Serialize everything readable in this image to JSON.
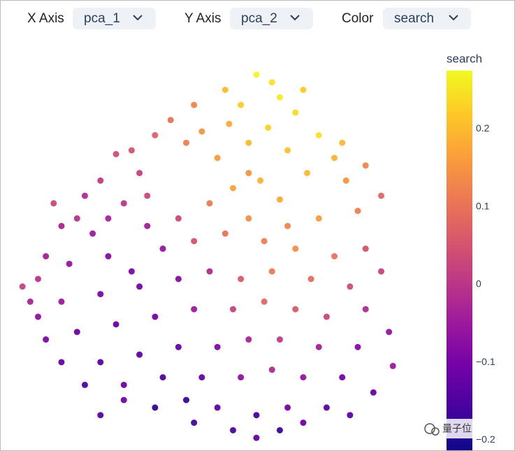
{
  "controls": [
    {
      "label": "X Axis",
      "value": "pca_1"
    },
    {
      "label": "Y Axis",
      "value": "pca_2"
    },
    {
      "label": "Color",
      "value": "search"
    }
  ],
  "watermark": "量子位",
  "chart_data": {
    "type": "scatter",
    "xlim": [
      0,
      100
    ],
    "ylim": [
      0,
      100
    ],
    "x": [
      62,
      68,
      58,
      72,
      55,
      65,
      78,
      48,
      60,
      70,
      82,
      52,
      44,
      75,
      63,
      85,
      56,
      68,
      88,
      78,
      60,
      50,
      40,
      36,
      30,
      26,
      32,
      22,
      18,
      28,
      12,
      20,
      8,
      2,
      6,
      14,
      24,
      34,
      42,
      38,
      46,
      54,
      64,
      72,
      82,
      90,
      94,
      86,
      76,
      66,
      58,
      50,
      42,
      32,
      22,
      12,
      6,
      16,
      26,
      36,
      46,
      56,
      64,
      72,
      80,
      90,
      96,
      97,
      88,
      78,
      68,
      60,
      52,
      42,
      32,
      22,
      12,
      18,
      28,
      38,
      48,
      58,
      66,
      74,
      84,
      92,
      80,
      70,
      62,
      52,
      44,
      36,
      22,
      56,
      62,
      68,
      74,
      46,
      86,
      28,
      8,
      4,
      54,
      74,
      66,
      46,
      84,
      90,
      94,
      34,
      16,
      10,
      24,
      30,
      60,
      70
    ],
    "y": [
      98,
      92,
      90,
      88,
      85,
      84,
      82,
      83,
      80,
      78,
      76,
      76,
      80,
      72,
      70,
      70,
      68,
      65,
      62,
      60,
      60,
      64,
      86,
      82,
      78,
      77,
      72,
      70,
      66,
      64,
      58,
      56,
      50,
      42,
      44,
      48,
      50,
      58,
      60,
      52,
      54,
      56,
      54,
      52,
      50,
      52,
      46,
      42,
      44,
      46,
      44,
      46,
      44,
      42,
      40,
      38,
      34,
      30,
      32,
      34,
      36,
      36,
      38,
      36,
      34,
      36,
      30,
      21,
      26,
      26,
      28,
      28,
      26,
      26,
      24,
      22,
      22,
      16,
      16,
      18,
      18,
      18,
      20,
      18,
      18,
      14,
      10,
      10,
      8,
      10,
      12,
      10,
      8,
      4,
      2,
      4,
      6,
      6,
      8,
      12,
      28,
      38,
      94,
      94,
      96,
      90,
      80,
      74,
      66,
      66,
      60,
      64,
      60,
      46,
      72,
      58
    ],
    "color_values": [
      0.27,
      0.26,
      0.22,
      0.24,
      0.18,
      0.23,
      0.25,
      0.15,
      0.2,
      0.21,
      0.19,
      0.16,
      0.12,
      0.2,
      0.19,
      0.15,
      0.17,
      0.18,
      0.12,
      0.16,
      0.14,
      0.11,
      0.1,
      0.07,
      0.05,
      0.04,
      0.02,
      0.01,
      -0.02,
      0.0,
      -0.03,
      -0.05,
      -0.04,
      0.02,
      0.0,
      -0.06,
      -0.08,
      -0.04,
      0.03,
      -0.06,
      0.05,
      0.1,
      0.12,
      0.14,
      0.1,
      0.05,
      0.02,
      0.04,
      0.09,
      0.11,
      0.06,
      -0.02,
      -0.08,
      -0.1,
      -0.09,
      -0.05,
      -0.07,
      -0.11,
      -0.12,
      -0.1,
      -0.05,
      0.02,
      0.08,
      0.06,
      0.03,
      -0.02,
      -0.06,
      -0.05,
      -0.08,
      -0.04,
      0.01,
      -0.03,
      -0.09,
      -0.12,
      -0.13,
      -0.14,
      -0.12,
      -0.15,
      -0.11,
      -0.15,
      -0.12,
      -0.07,
      -0.02,
      -0.06,
      -0.1,
      -0.12,
      -0.14,
      -0.1,
      -0.16,
      -0.13,
      -0.17,
      -0.18,
      -0.14,
      -0.15,
      -0.12,
      -0.17,
      -0.11,
      -0.16,
      -0.13,
      -0.1,
      -0.09,
      -0.03,
      0.2,
      0.22,
      0.25,
      0.13,
      0.2,
      0.13,
      0.08,
      0.03,
      -0.01,
      0.03,
      -0.03,
      -0.09,
      0.15,
      0.13
    ],
    "colorscale": [
      "#0d0887",
      "#46039f",
      "#7201a8",
      "#9c179e",
      "#bd3786",
      "#d8576b",
      "#ed7953",
      "#fb9f3a",
      "#fdca26",
      "#f0f921"
    ],
    "colorbar": {
      "title": "search",
      "clim": [
        -0.215,
        0.275
      ],
      "ticks": [
        0.2,
        0.1,
        0,
        {
          "value": -0.1,
          "label": "−0.1"
        },
        {
          "value": -0.2,
          "label": "−0.2"
        }
      ]
    }
  }
}
